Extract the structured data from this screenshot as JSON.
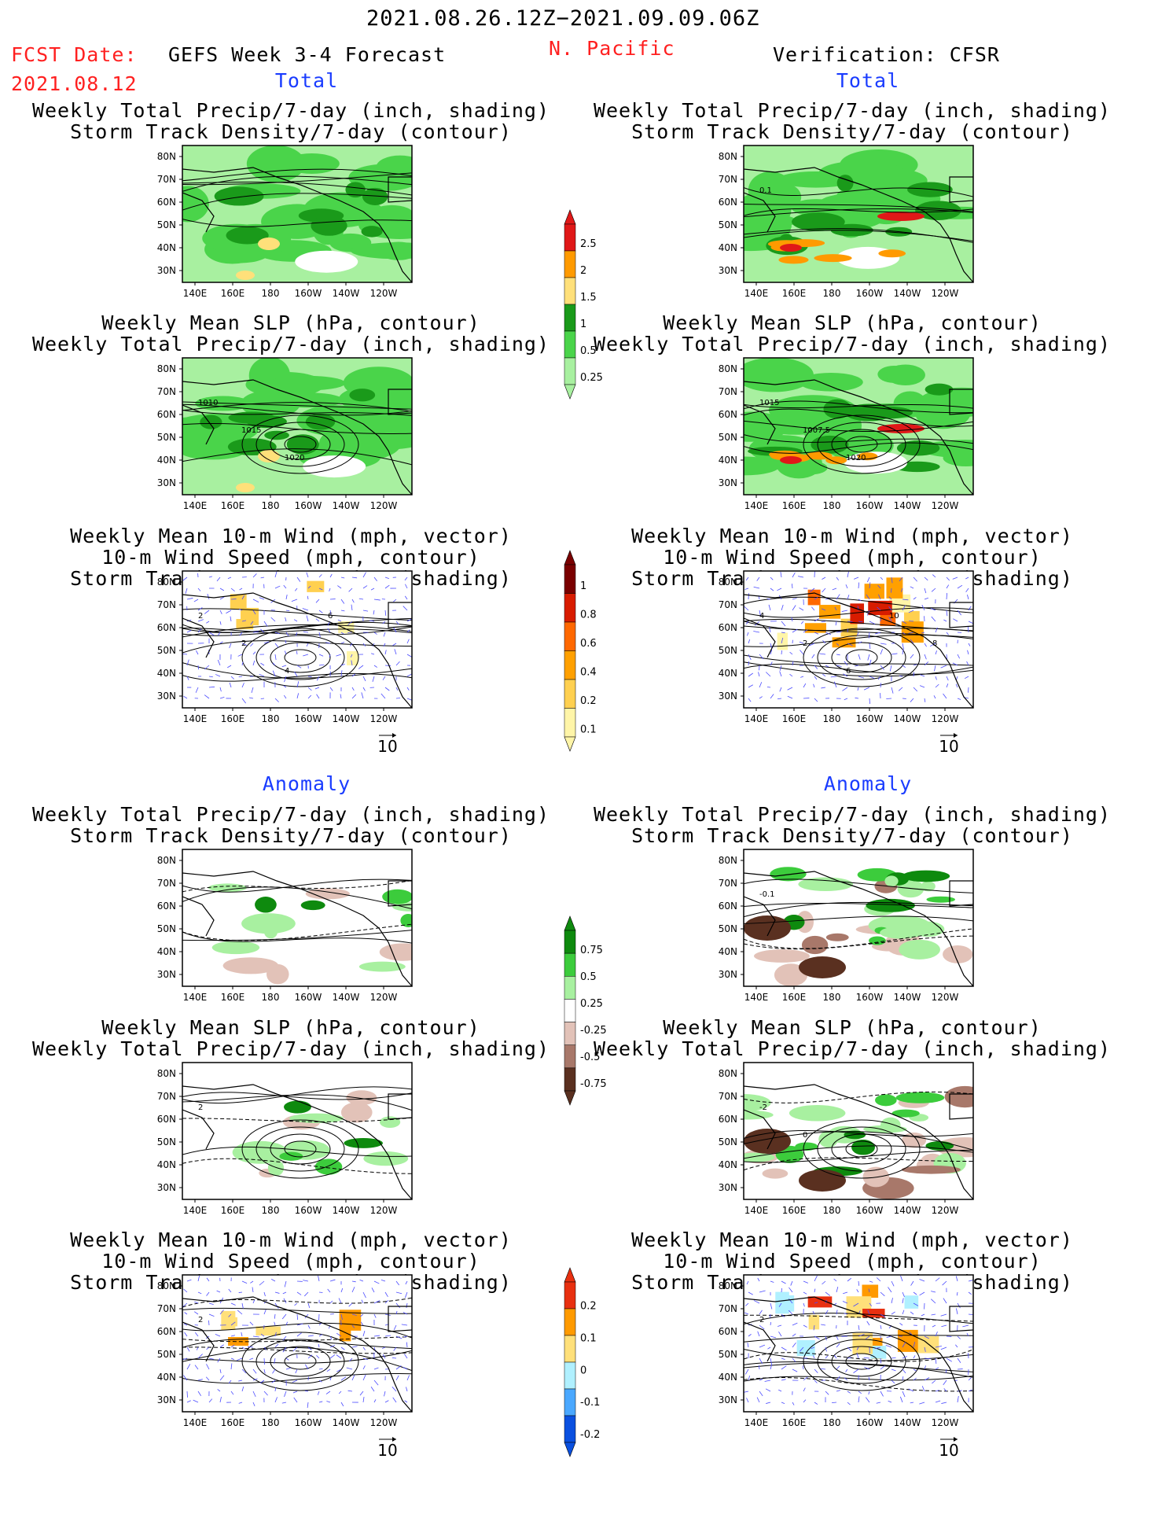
{
  "header": {
    "period": "2021.08.26.12Z−2021.09.09.06Z",
    "fcst_label": "FCST Date:",
    "fcst_date": "2021.08.12",
    "forecast_label": "GEFS Week 3-4 Forecast",
    "region": "N. Pacific",
    "verification_label": "Verification: CFSR"
  },
  "sections": {
    "total_left": "Total",
    "total_right": "Total",
    "anomaly_left": "Anomaly",
    "anomaly_right": "Anomaly"
  },
  "panel_titles": {
    "precip_track": "Weekly Total Precip/7-day (inch, shading)\nStorm Track Density/7-day (contour)",
    "slp_precip": "Weekly Mean SLP (hPa, contour)\nWeekly Total Precip/7-day (inch, shading)",
    "wind_track": "Weekly Mean 10-m Wind (mph, vector)\n10-m Wind Speed (mph, contour)\nStorm Track Density/7-day (shading)"
  },
  "map_axes": {
    "lat_ticks": [
      "80N",
      "70N",
      "60N",
      "50N",
      "40N",
      "30N"
    ],
    "lon_ticks": [
      "140E",
      "160E",
      "180",
      "160W",
      "140W",
      "120W"
    ]
  },
  "vector_reference": "10",
  "colorbars": [
    {
      "name": "precip-total",
      "labels": [
        "2.5",
        "2",
        "1.5",
        "1",
        "0.5",
        "0.25"
      ],
      "colors": [
        "#e01818",
        "#ff9a00",
        "#ffe07a",
        "#1a9a1a",
        "#4ad44a",
        "#a8f0a0"
      ]
    },
    {
      "name": "track-total",
      "labels": [
        "1",
        "0.8",
        "0.6",
        "0.4",
        "0.2",
        "0.1"
      ],
      "colors": [
        "#7a0000",
        "#d81c00",
        "#ff6800",
        "#ffa000",
        "#ffd050",
        "#fff5a8"
      ]
    },
    {
      "name": "precip-anomaly",
      "labels": [
        "0.75",
        "0.5",
        "0.25",
        "-0.25",
        "-0.5",
        "-0.75"
      ],
      "colors": [
        "#0e8a0e",
        "#3ccc3c",
        "#a8f0a0",
        "#ffffff",
        "#e2c2b8",
        "#a8786a",
        "#5a3020"
      ]
    },
    {
      "name": "track-anomaly",
      "labels": [
        "0.2",
        "0.1",
        "0",
        "-0.1",
        "-0.2"
      ],
      "colors": [
        "#e83010",
        "#ff9a00",
        "#ffe07a",
        "#b0f0ff",
        "#4aa8ff",
        "#0a50e0"
      ]
    }
  ],
  "panels": [
    {
      "name": "fcst-total-precip",
      "col": "left",
      "row": 0,
      "kind": "precip",
      "palette": "total",
      "contour_labels": []
    },
    {
      "name": "obs-total-precip",
      "col": "right",
      "row": 0,
      "kind": "precip",
      "palette": "total",
      "contour_labels": [
        "0.1"
      ]
    },
    {
      "name": "fcst-total-slp",
      "col": "left",
      "row": 1,
      "kind": "slp",
      "palette": "total",
      "contour_labels": [
        "1010",
        "1015",
        "1020"
      ]
    },
    {
      "name": "obs-total-slp",
      "col": "right",
      "row": 1,
      "kind": "slp",
      "palette": "total",
      "contour_labels": [
        "1015",
        "1007.5",
        "1020"
      ]
    },
    {
      "name": "fcst-total-wind",
      "col": "left",
      "row": 2,
      "kind": "wind",
      "palette": "track",
      "contour_labels": [
        "2",
        "2",
        "4",
        "6"
      ]
    },
    {
      "name": "obs-total-wind",
      "col": "right",
      "row": 2,
      "kind": "wind",
      "palette": "track",
      "contour_labels": [
        "4",
        "2",
        "6",
        "10",
        "8"
      ]
    },
    {
      "name": "fcst-anom-precip",
      "col": "left",
      "row": 3,
      "kind": "precip",
      "palette": "anom",
      "contour_labels": []
    },
    {
      "name": "obs-anom-precip",
      "col": "right",
      "row": 3,
      "kind": "precip",
      "palette": "anom",
      "contour_labels": [
        "-0.1"
      ]
    },
    {
      "name": "fcst-anom-slp",
      "col": "left",
      "row": 4,
      "kind": "slp",
      "palette": "anom",
      "contour_labels": [
        "2"
      ]
    },
    {
      "name": "obs-anom-slp",
      "col": "right",
      "row": 4,
      "kind": "slp",
      "palette": "anom",
      "contour_labels": [
        "-2",
        "0"
      ]
    },
    {
      "name": "fcst-anom-wind",
      "col": "left",
      "row": 5,
      "kind": "wind",
      "palette": "trackanom",
      "contour_labels": [
        "2"
      ]
    },
    {
      "name": "obs-anom-wind",
      "col": "right",
      "row": 5,
      "kind": "wind",
      "palette": "trackanom",
      "contour_labels": [
        "2"
      ]
    }
  ]
}
